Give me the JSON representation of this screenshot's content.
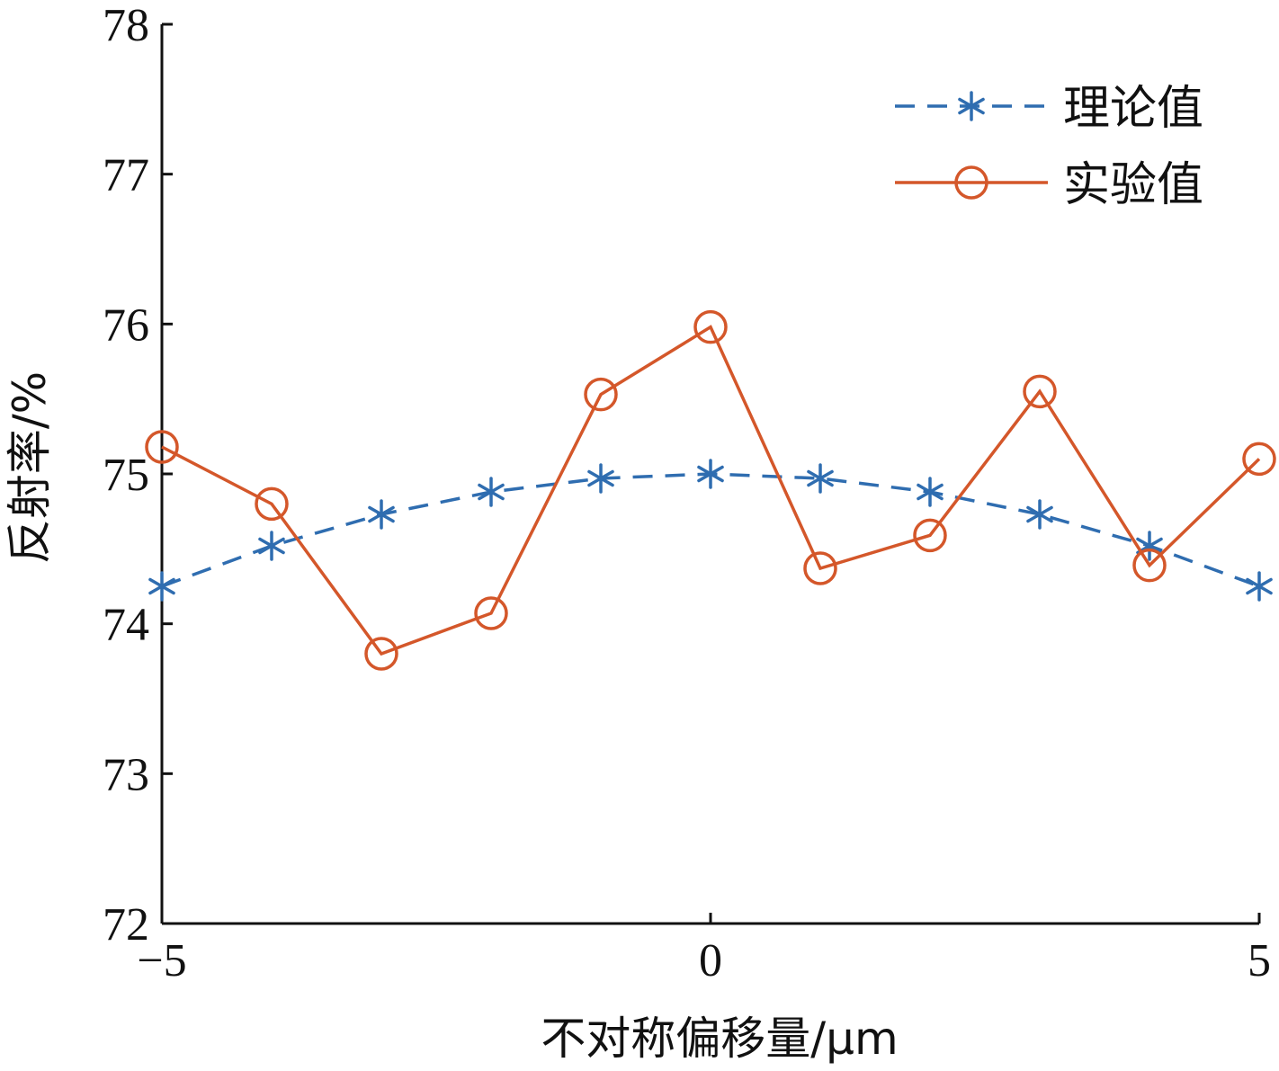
{
  "chart_data": {
    "type": "line",
    "title": "",
    "xlabel": "不对称偏移量/μm",
    "ylabel": "反射率/%",
    "xlim": [
      -5,
      5
    ],
    "ylim": [
      72,
      78
    ],
    "xticks": [
      "−5",
      "0",
      "5"
    ],
    "xtick_values": [
      -5,
      0,
      5
    ],
    "yticks": [
      "72",
      "73",
      "74",
      "75",
      "76",
      "77",
      "78"
    ],
    "ytick_values": [
      72,
      73,
      74,
      75,
      76,
      77,
      78
    ],
    "grid": false,
    "legend_position": "top-right",
    "x": [
      -5,
      -4,
      -3,
      -2,
      -1,
      0,
      1,
      2,
      3,
      4,
      5
    ],
    "series": [
      {
        "name": "理论值",
        "line_style": "dashed",
        "marker": "asterisk",
        "color": "#2f6db0",
        "values": [
          74.25,
          74.52,
          74.73,
          74.88,
          74.97,
          75.0,
          74.97,
          74.88,
          74.73,
          74.52,
          74.25
        ]
      },
      {
        "name": "实验值",
        "line_style": "solid",
        "marker": "circle",
        "color": "#d4572a",
        "values": [
          75.18,
          74.8,
          73.8,
          74.07,
          75.53,
          75.98,
          74.37,
          74.59,
          75.55,
          74.39,
          75.1
        ]
      }
    ]
  }
}
